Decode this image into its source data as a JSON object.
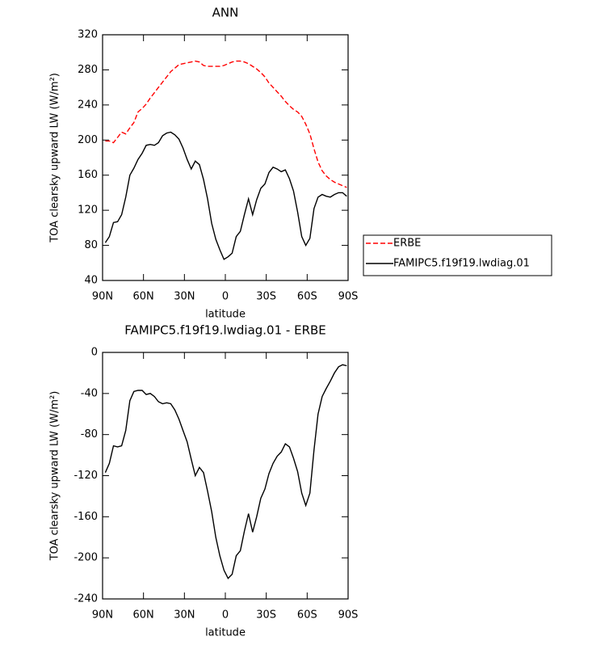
{
  "chart_data": [
    {
      "type": "line",
      "title": "ANN",
      "ylabel": "TOA clearsky upward LW (W/m²)",
      "xlabel": "latitude",
      "x": [
        88,
        85,
        82,
        79,
        76,
        73,
        70,
        67,
        64,
        61,
        58,
        55,
        52,
        49,
        46,
        43,
        40,
        37,
        34,
        31,
        28,
        25,
        22,
        19,
        16,
        13,
        10,
        7,
        4,
        1,
        -2,
        -5,
        -8,
        -11,
        -14,
        -17,
        -20,
        -23,
        -26,
        -29,
        -32,
        -35,
        -38,
        -41,
        -44,
        -47,
        -50,
        -53,
        -56,
        -59,
        -62,
        -65,
        -68,
        -71,
        -74,
        -77,
        -80,
        -83,
        -86,
        -89
      ],
      "series": [
        {
          "name": "ERBE",
          "color": "#ff0000",
          "dashed": true,
          "values": [
            199,
            199,
            197,
            203,
            209,
            207,
            214,
            220,
            232,
            236,
            241,
            248,
            254,
            260,
            266,
            272,
            278,
            282,
            286,
            287,
            288,
            289,
            290,
            289,
            285,
            284,
            284,
            284,
            284,
            285,
            287,
            289,
            290,
            290,
            289,
            287,
            284,
            281,
            277,
            272,
            265,
            260,
            255,
            250,
            244,
            239,
            235,
            232,
            227,
            218,
            207,
            190,
            175,
            165,
            159,
            155,
            152,
            150,
            148,
            146
          ]
        },
        {
          "name": "FAMIPC5.f19f19.lwdiag.01",
          "color": "#000000",
          "dashed": false,
          "values": [
            83,
            90,
            106,
            107,
            115,
            135,
            160,
            168,
            178,
            185,
            194,
            195,
            194,
            197,
            205,
            208,
            209,
            206,
            201,
            191,
            178,
            167,
            176,
            172,
            155,
            133,
            105,
            87,
            75,
            64,
            67,
            71,
            90,
            96,
            115,
            133,
            115,
            132,
            145,
            150,
            163,
            169,
            167,
            164,
            166,
            156,
            142,
            118,
            90,
            80,
            88,
            122,
            135,
            138,
            136,
            135,
            138,
            140,
            140,
            136
          ]
        }
      ],
      "xlim": [
        90,
        -90
      ],
      "xticks": [
        {
          "value": 90,
          "label": "90N"
        },
        {
          "value": 60,
          "label": "60N"
        },
        {
          "value": 30,
          "label": "30N"
        },
        0,
        {
          "value": -30,
          "label": "30S"
        },
        {
          "value": -60,
          "label": "60S"
        },
        {
          "value": -90,
          "label": "90S"
        }
      ],
      "ylim": [
        40,
        320
      ],
      "yticks": [
        40,
        80,
        120,
        160,
        200,
        240,
        280,
        320
      ],
      "legend": "outside-right"
    },
    {
      "type": "line",
      "title": "FAMIPC5.f19f19.lwdiag.01 - ERBE",
      "ylabel": "TOA clearsky upward LW (W/m²)",
      "xlabel": "latitude",
      "x": [
        88,
        85,
        82,
        79,
        76,
        73,
        70,
        67,
        64,
        61,
        58,
        55,
        52,
        49,
        46,
        43,
        40,
        37,
        34,
        31,
        28,
        25,
        22,
        19,
        16,
        13,
        10,
        7,
        4,
        1,
        -2,
        -5,
        -8,
        -11,
        -14,
        -17,
        -20,
        -23,
        -26,
        -29,
        -32,
        -35,
        -38,
        -41,
        -44,
        -47,
        -50,
        -53,
        -56,
        -59,
        -62,
        -65,
        -68,
        -71,
        -74,
        -77,
        -80,
        -83,
        -86,
        -89
      ],
      "values": [
        -117,
        -108,
        -91,
        -92,
        -91,
        -76,
        -47,
        -38,
        -37,
        -37,
        -41,
        -40,
        -43,
        -48,
        -50,
        -49,
        -50,
        -56,
        -65,
        -76,
        -87,
        -104,
        -120,
        -112,
        -117,
        -135,
        -155,
        -180,
        -198,
        -212,
        -220,
        -216,
        -198,
        -193,
        -174,
        -157,
        -175,
        -160,
        -142,
        -133,
        -118,
        -108,
        -101,
        -97,
        -89,
        -92,
        -103,
        -116,
        -137,
        -149,
        -137,
        -95,
        -60,
        -43,
        -35,
        -28,
        -20,
        -14,
        -12,
        -13
      ],
      "color": "#000000",
      "xlim": [
        90,
        -90
      ],
      "xticks": [
        {
          "value": 90,
          "label": "90N"
        },
        {
          "value": 60,
          "label": "60N"
        },
        {
          "value": 30,
          "label": "30N"
        },
        0,
        {
          "value": -30,
          "label": "30S"
        },
        {
          "value": -60,
          "label": "60S"
        },
        {
          "value": -90,
          "label": "90S"
        }
      ],
      "ylim": [
        -240,
        0
      ],
      "yticks": [
        -240,
        -200,
        -160,
        -120,
        -80,
        -40,
        0
      ]
    }
  ]
}
